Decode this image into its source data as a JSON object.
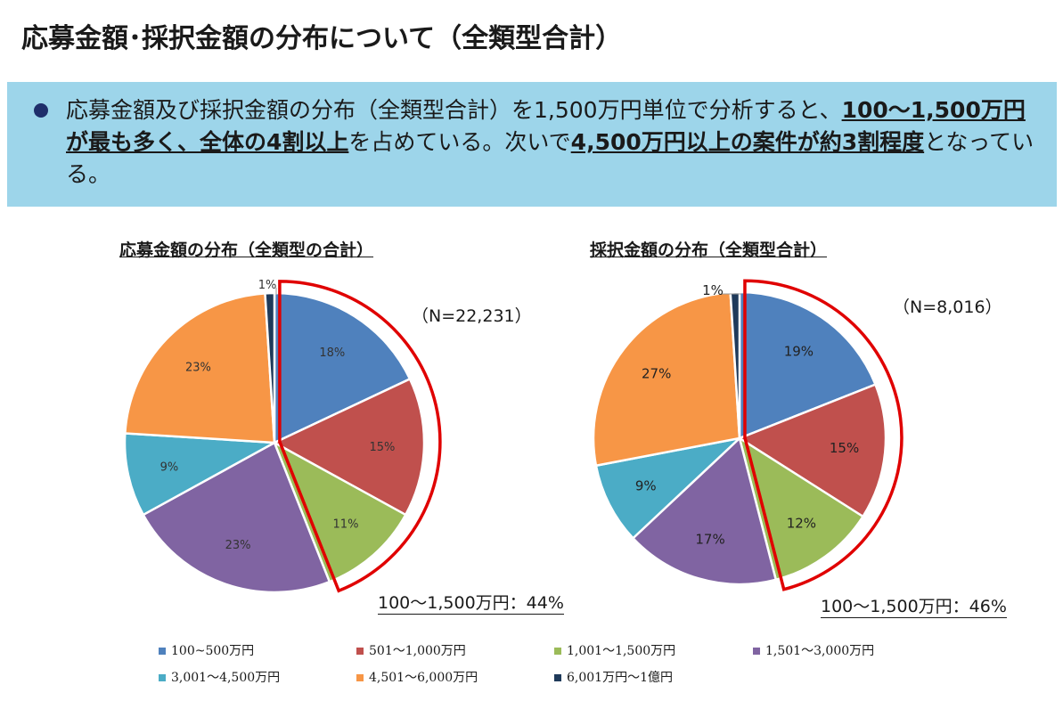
{
  "title": "応募金額･採択金額の分布について（全類型合計）",
  "summary": {
    "parts": [
      {
        "text": "応募金額及び採択金額の分布（全類型合計）を1,500万円単位で分析すると、",
        "bold": false
      },
      {
        "text": "100～1,500万円が最も多く、全体の4割以上",
        "bold": true
      },
      {
        "text": "を占めている。次いで",
        "bold": false
      },
      {
        "text": "4,500万円以上の案件が約3割程度",
        "bold": true
      },
      {
        "text": "となっている。",
        "bold": false
      }
    ]
  },
  "colors": {
    "100~500万円": "#4f81bd",
    "501～1,000万円": "#c0504d",
    "1,001～1,500万円": "#9bbb59",
    "1,501～3,000万円": "#8064a2",
    "3,001～4,500万円": "#4bacc6",
    "4,501～6,000万円": "#f79646",
    "6,001万円～1億円": "#1f3a5a",
    "highlight": "#e00000"
  },
  "legend": [
    "100~500万円",
    "501～1,000万円",
    "1,001～1,500万円",
    "1,501～3,000万円",
    "3,001～4,500万円",
    "4,501～6,000万円",
    "6,001万円～1億円"
  ],
  "chart_data": [
    {
      "type": "pie",
      "title": "応募金額の分布（全類型の合計）",
      "n_label": "（N=22,231）",
      "categories": [
        "100~500万円",
        "501～1,000万円",
        "1,001～1,500万円",
        "1,501～3,000万円",
        "3,001～4,500万円",
        "4,501～6,000万円",
        "6,001万円～1億円"
      ],
      "values": [
        18,
        15,
        11,
        23,
        9,
        23,
        1
      ],
      "labels": [
        "18%",
        "15%",
        "11%",
        "23%",
        "9%",
        "23%",
        "1%"
      ],
      "highlight_label": "100～1,500万円：44%"
    },
    {
      "type": "pie",
      "title": "採択金額の分布（全類型合計）",
      "n_label": "（N=8,016）",
      "categories": [
        "100~500万円",
        "501～1,000万円",
        "1,001～1,500万円",
        "1,501～3,000万円",
        "3,001～4,500万円",
        "4,501～6,000万円",
        "6,001万円～1億円"
      ],
      "values": [
        19,
        15,
        12,
        17,
        9,
        27,
        1
      ],
      "labels": [
        "19%",
        "15%",
        "12%",
        "17%",
        "9%",
        "27%",
        "1%"
      ],
      "highlight_label": "100～1,500万円：46%"
    }
  ]
}
